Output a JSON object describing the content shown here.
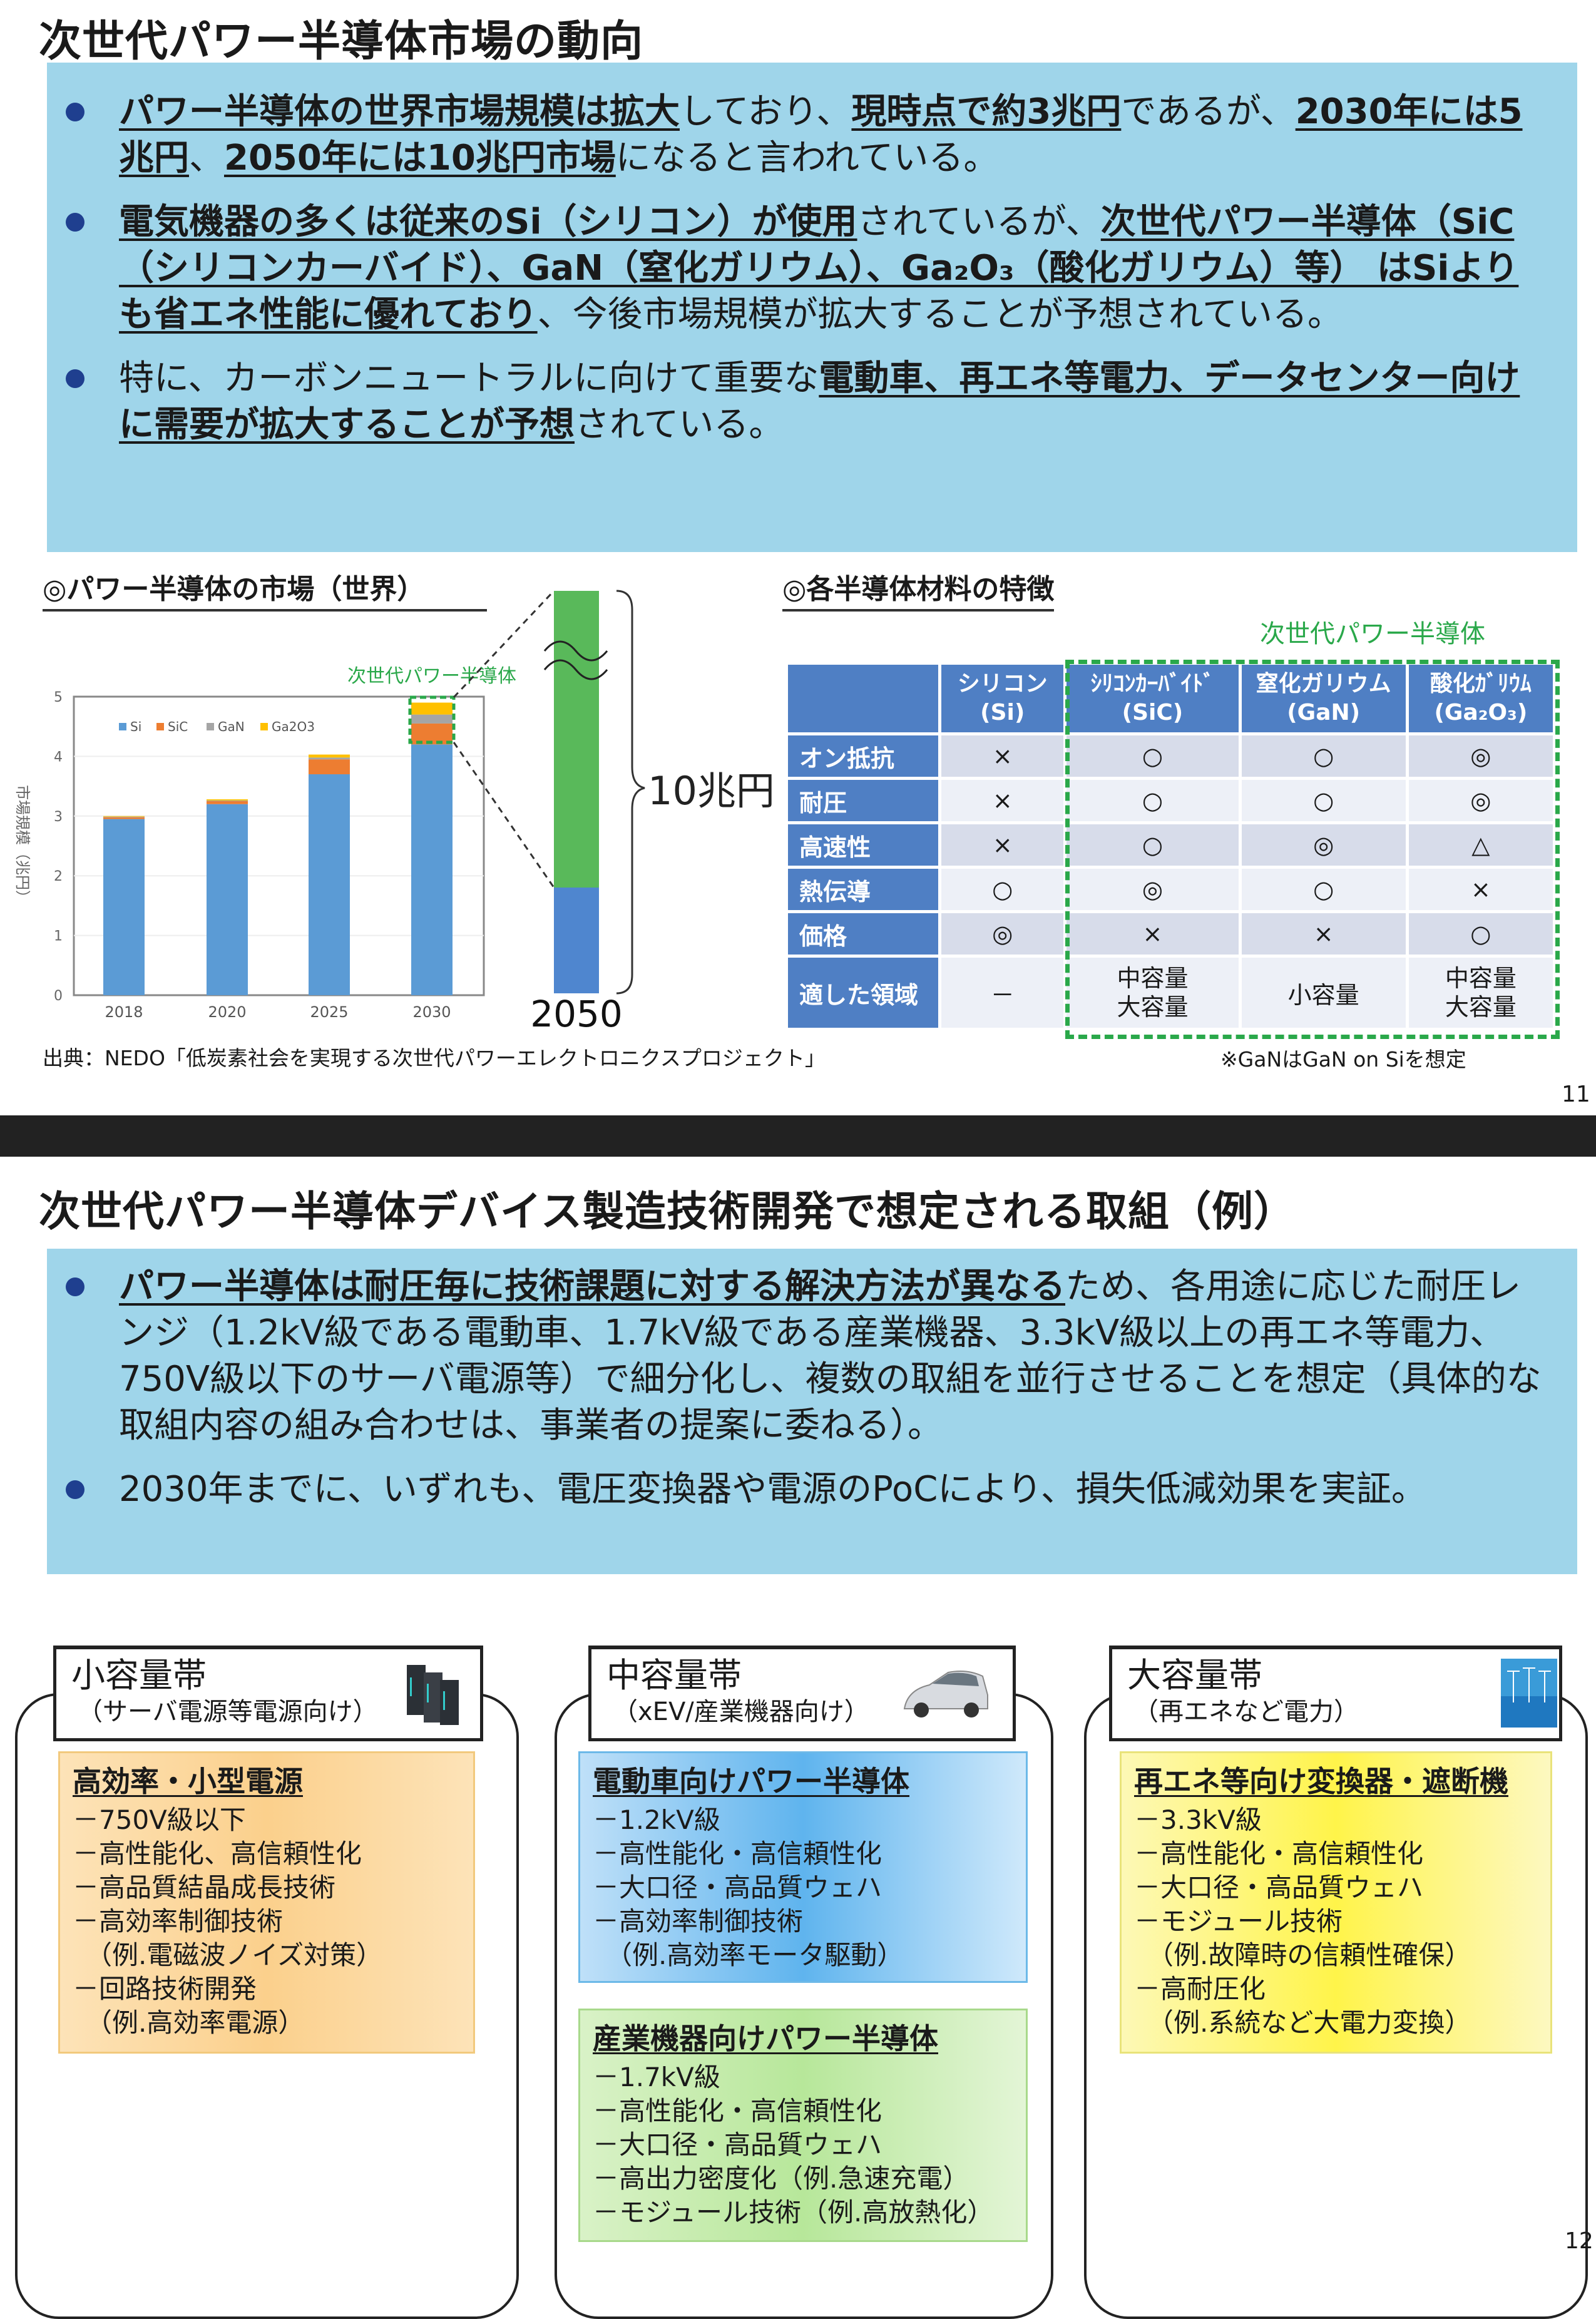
{
  "slide1": {
    "title": "次世代パワー半導体市場の動向",
    "bullets": [
      [
        {
          "t": "パワー半導体の世界市場規模は拡大",
          "b": true
        },
        {
          "t": "しており、"
        },
        {
          "t": "現時点で約3兆円",
          "b": true
        },
        {
          "t": "であるが、"
        },
        {
          "t": "2030年には5兆円",
          "b": true
        },
        {
          "t": "、"
        },
        {
          "t": "2050年には10兆円市場",
          "b": true
        },
        {
          "t": "になると言われている。"
        }
      ],
      [
        {
          "t": "電気機器の多くは従来のSi（シリコン）が使用",
          "b": true
        },
        {
          "t": "されているが、"
        },
        {
          "t": "次世代パワー半導体（SiC（シリコンカーバイド）、GaN（窒化ガリウム）、Ga₂O₃（酸化ガリウム）等） はSiよりも省エネ性能に優れており",
          "b": true
        },
        {
          "t": "、今後市場規模が拡大することが予想されている。"
        }
      ],
      [
        {
          "t": "特に、カーボンニュートラルに向けて重要な"
        },
        {
          "t": "電動車、再エネ等電力、データセンター向けに需要が拡大することが予想",
          "b": true
        },
        {
          "t": "されている。"
        }
      ]
    ],
    "market_section_title": "◎パワー半導体の市場（世界）",
    "next_gen_label": "次世代パワー半導体",
    "bar_2050_label": "2050",
    "bar_2050_value_label": "10兆円",
    "source": "出典：NEDO「低炭素社会を実現する次世代パワーエレクトロニクスプロジェクト」",
    "materials_section_title": "◎各半導体材料の特徴",
    "table_next_gen_label": "次世代パワー半導体",
    "table": {
      "headers": [
        {
          "name": "",
          "formula": ""
        },
        {
          "name": "シリコン",
          "formula": "(Si)"
        },
        {
          "name": "ｼﾘｺﾝｶｰﾊﾞｲﾄﾞ",
          "formula": "(SiC)"
        },
        {
          "name": "窒化ガリウム",
          "formula": "(GaN)"
        },
        {
          "name": "酸化ｶﾞﾘｳﾑ",
          "formula": "(Ga₂O₃)"
        }
      ],
      "rows": [
        [
          "オン抵抗",
          "×",
          "○",
          "○",
          "◎"
        ],
        [
          "耐圧",
          "×",
          "○",
          "○",
          "◎"
        ],
        [
          "高速性",
          "×",
          "○",
          "◎",
          "△"
        ],
        [
          "熱伝導",
          "○",
          "◎",
          "○",
          "×"
        ],
        [
          "価格",
          "◎",
          "×",
          "×",
          "○"
        ],
        [
          "適した領域",
          "－",
          "中容量\n大容量",
          "小容量",
          "中容量\n大容量"
        ]
      ]
    },
    "table_note": "※GaNはGaN on Siを想定",
    "page_number": "11"
  },
  "chart_data": {
    "type": "bar",
    "stacked": true,
    "title": "",
    "xlabel": "",
    "ylabel": "市場規模（兆円）",
    "ylim": [
      0,
      5
    ],
    "yticks": [
      "0",
      "1",
      "2",
      "3",
      "4",
      "5"
    ],
    "categories": [
      "2018",
      "2020",
      "2025",
      "2030"
    ],
    "series": [
      {
        "name": "Si",
        "color": "#5b9bd5",
        "values": [
          2.95,
          3.2,
          3.7,
          4.2
        ]
      },
      {
        "name": "SiC",
        "color": "#ed7d31",
        "values": [
          0.03,
          0.05,
          0.25,
          0.35
        ]
      },
      {
        "name": "GaN",
        "color": "#a5a5a5",
        "values": [
          0.01,
          0.01,
          0.03,
          0.15
        ]
      },
      {
        "name": "Ga2O3",
        "color": "#ffc000",
        "values": [
          0.01,
          0.02,
          0.05,
          0.2
        ]
      }
    ],
    "legend_position": "top-left",
    "extra_bar_2050": {
      "total": 10,
      "si_share_color": "#4f86cf",
      "next_gen_color": "#59b95a"
    }
  },
  "slide2": {
    "title": "次世代パワー半導体デバイス製造技術開発で想定される取組（例）",
    "bullets": [
      [
        {
          "t": "パワー半導体は耐圧毎に技術課題に対する解決方法が異なる",
          "b": true
        },
        {
          "t": "ため、各用途に応じた耐圧レンジ（1.2kV級である電動車、1.7kV級である産業機器、3.3kV級以上の再エネ等電力、750V級以下のサーバ電源等）で細分化し、複数の取組を並行させることを想定（具体的な取組内容の組み合わせは、事業者の提案に委ねる）。"
        }
      ],
      [
        {
          "t": "2030年までに、いずれも、電圧変換器や電源のPoCにより、損失低減効果を実証。"
        }
      ]
    ],
    "panels": [
      {
        "title": "小容量帯",
        "subtitle": "（サーバ電源等電源向け）",
        "icon": "server-icon",
        "boxes": [
          {
            "heading": "高効率・小型電源",
            "items": [
              "－750V級以下",
              "－高性能化、高信頼性化",
              "－高品質結晶成長技術",
              "－高効率制御技術\n　（例.電磁波ノイズ対策）",
              "－回路技術開発\n　（例.高効率電源）"
            ]
          }
        ]
      },
      {
        "title": "中容量帯",
        "subtitle": "（xEV/産業機器向け）",
        "icon": "car-icon",
        "boxes": [
          {
            "heading": "電動車向けパワー半導体",
            "items": [
              "－1.2kV級",
              "－高性能化・高信頼性化",
              "－大口径・高品質ウェハ",
              "－高効率制御技術\n　（例.高効率モータ駆動）"
            ]
          },
          {
            "heading": "産業機器向けパワー半導体",
            "items": [
              "－1.7kV級",
              "－高性能化・高信頼性化",
              "－大口径・高品質ウェハ",
              "－高出力密度化（例.急速充電）",
              "－モジュール技術（例.高放熱化）"
            ]
          }
        ]
      },
      {
        "title": "大容量帯",
        "subtitle": "（再エネなど電力）",
        "icon": "wind-turbine-icon",
        "boxes": [
          {
            "heading": "再エネ等向け変換器・遮断機",
            "items": [
              "－3.3kV級",
              "－高性能化・高信頼性化",
              "－大口径・高品質ウェハ",
              "－モジュール技術\n　（例.故障時の信頼性確保）",
              "－高耐圧化\n　（例.系統など大電力変換）"
            ]
          }
        ]
      }
    ],
    "page_number": "12"
  }
}
